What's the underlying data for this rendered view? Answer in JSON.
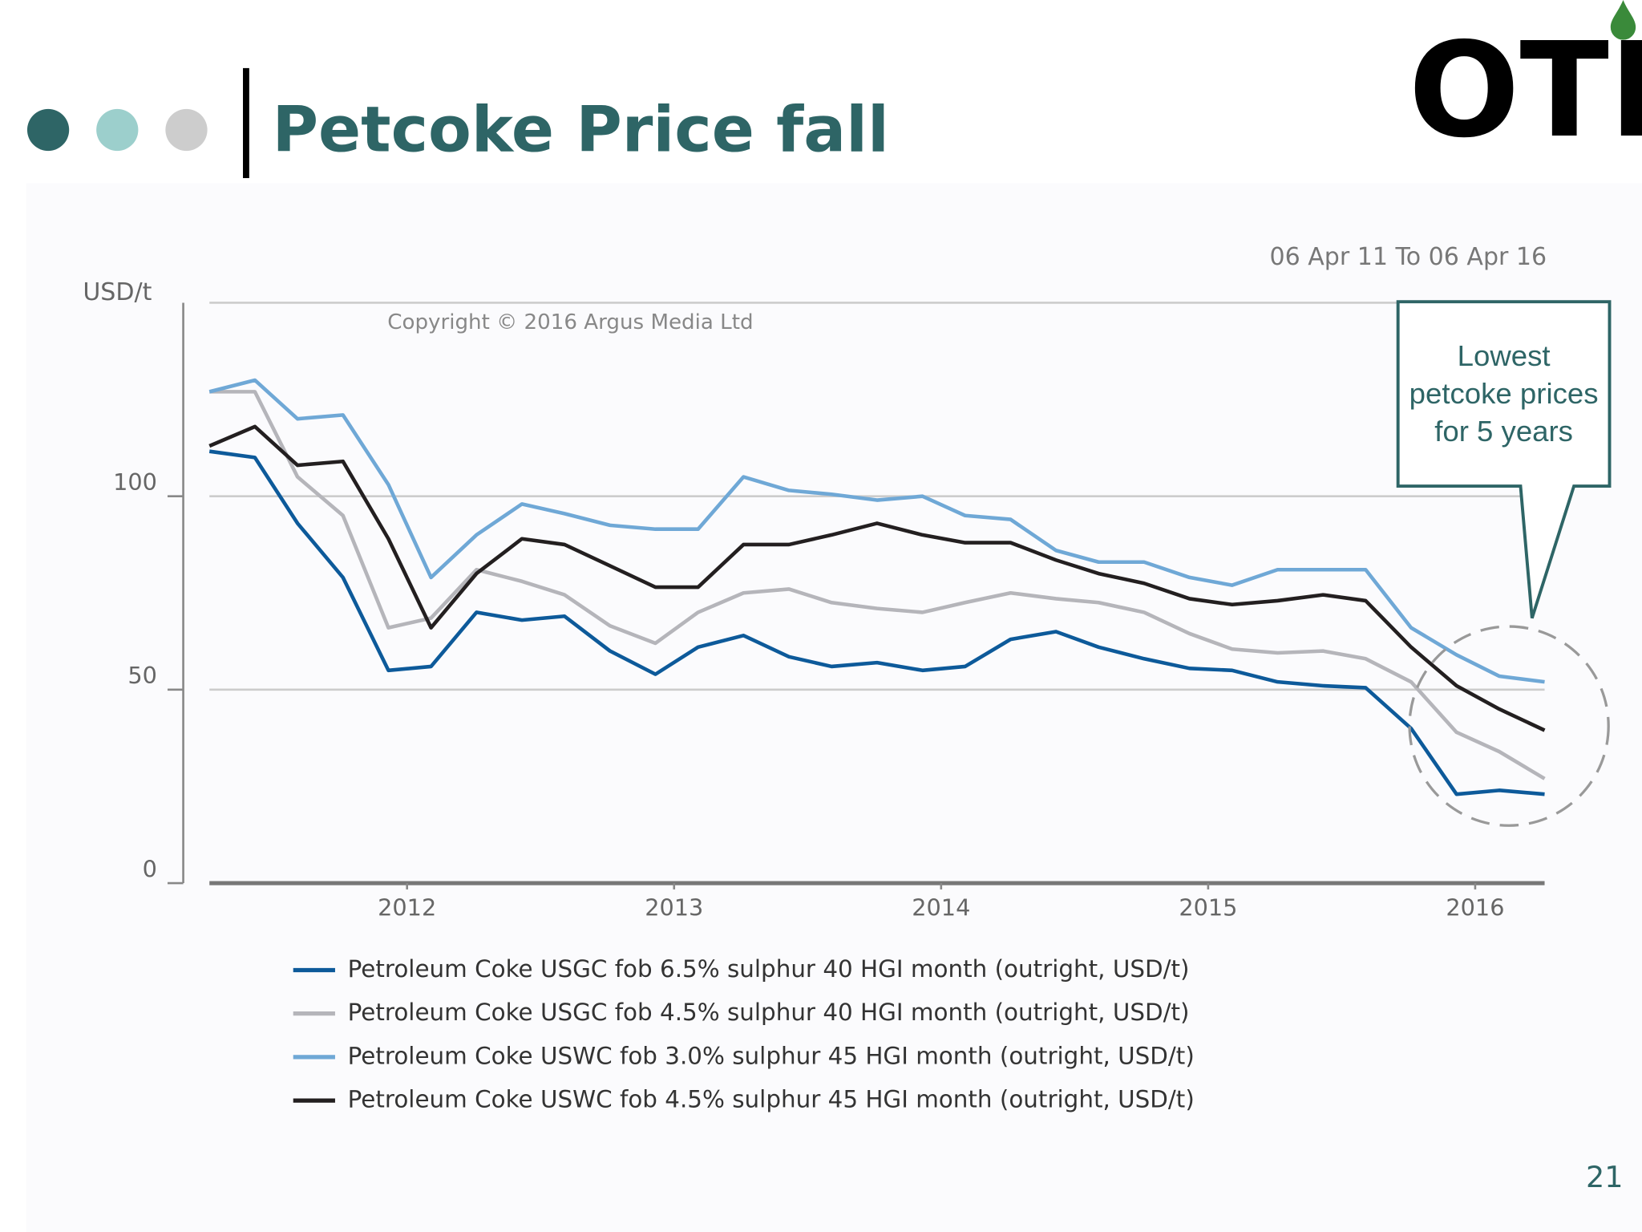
{
  "page": {
    "title": "Petcoke Price fall",
    "logo": "OTI",
    "page_number": "21"
  },
  "chart_data": {
    "type": "line",
    "date_range": "06 Apr 11 To 06 Apr 16",
    "y_label": "USD/t",
    "copyright": "Copyright © 2016 Argus Media Ltd",
    "annotation": "Lowest petcoke prices for 5 years",
    "xlim": [
      2011.26,
      2016.26
    ],
    "xticks": [
      2012,
      2013,
      2014,
      2015,
      2016
    ],
    "ylim": [
      0,
      150
    ],
    "yticks": [
      0,
      50,
      100
    ],
    "grid": true,
    "legend": "bottom",
    "x": [
      2011.26,
      2011.43,
      2011.59,
      2011.76,
      2011.93,
      2012.09,
      2012.26,
      2012.43,
      2012.59,
      2012.76,
      2012.93,
      2013.09,
      2013.26,
      2013.43,
      2013.59,
      2013.76,
      2013.93,
      2014.09,
      2014.26,
      2014.43,
      2014.59,
      2014.76,
      2014.93,
      2015.09,
      2015.26,
      2015.43,
      2015.59,
      2015.76,
      2015.93,
      2016.09,
      2016.26
    ],
    "series": [
      {
        "name": "Petroleum Coke USGC fob 6.5% sulphur 40 HGI month (outright, USD/t)",
        "color": "#0d5a9a",
        "values": [
          111.6,
          110,
          93,
          79,
          55,
          56,
          70,
          68,
          69,
          60,
          54,
          61,
          64,
          58.5,
          56,
          57,
          55,
          56,
          63,
          65,
          61,
          58,
          55.5,
          55,
          52,
          51,
          50.5,
          40,
          23,
          24,
          23
        ]
      },
      {
        "name": "Petroleum Coke USGC fob 4.5% sulphur 40 HGI month (outright, USD/t)",
        "color": "#b5b5ba",
        "values": [
          127,
          127,
          105,
          95,
          66,
          68.5,
          81,
          78,
          74.5,
          66.5,
          62,
          70,
          75,
          76,
          72.5,
          71,
          70,
          72.5,
          75,
          73.5,
          72.5,
          70,
          64.5,
          60.5,
          59.5,
          60,
          58,
          52,
          39,
          34,
          27
        ]
      },
      {
        "name": "Petroleum Coke USWC fob 3.0% sulphur 45 HGI month (outright, USD/t)",
        "color": "#6fa8d6",
        "values": [
          127,
          130,
          120,
          121,
          103,
          79,
          90,
          98,
          95.5,
          92.5,
          91.5,
          91.5,
          105,
          101.5,
          100.5,
          99,
          100,
          95,
          94,
          86,
          83,
          83,
          79,
          77,
          81,
          81,
          81,
          66,
          59,
          53.5,
          52
        ]
      },
      {
        "name": "Petroleum Coke USWC fob 4.5% sulphur 45 HGI month (outright, USD/t)",
        "color": "#231f20",
        "values": [
          113,
          118,
          108,
          109,
          89,
          66,
          80,
          89,
          87.5,
          82,
          76.5,
          76.5,
          87.5,
          87.5,
          90,
          93,
          90,
          88,
          88,
          83.5,
          80,
          77.5,
          73.5,
          72,
          73,
          74.5,
          73,
          61,
          51,
          45,
          39.5
        ]
      }
    ]
  }
}
